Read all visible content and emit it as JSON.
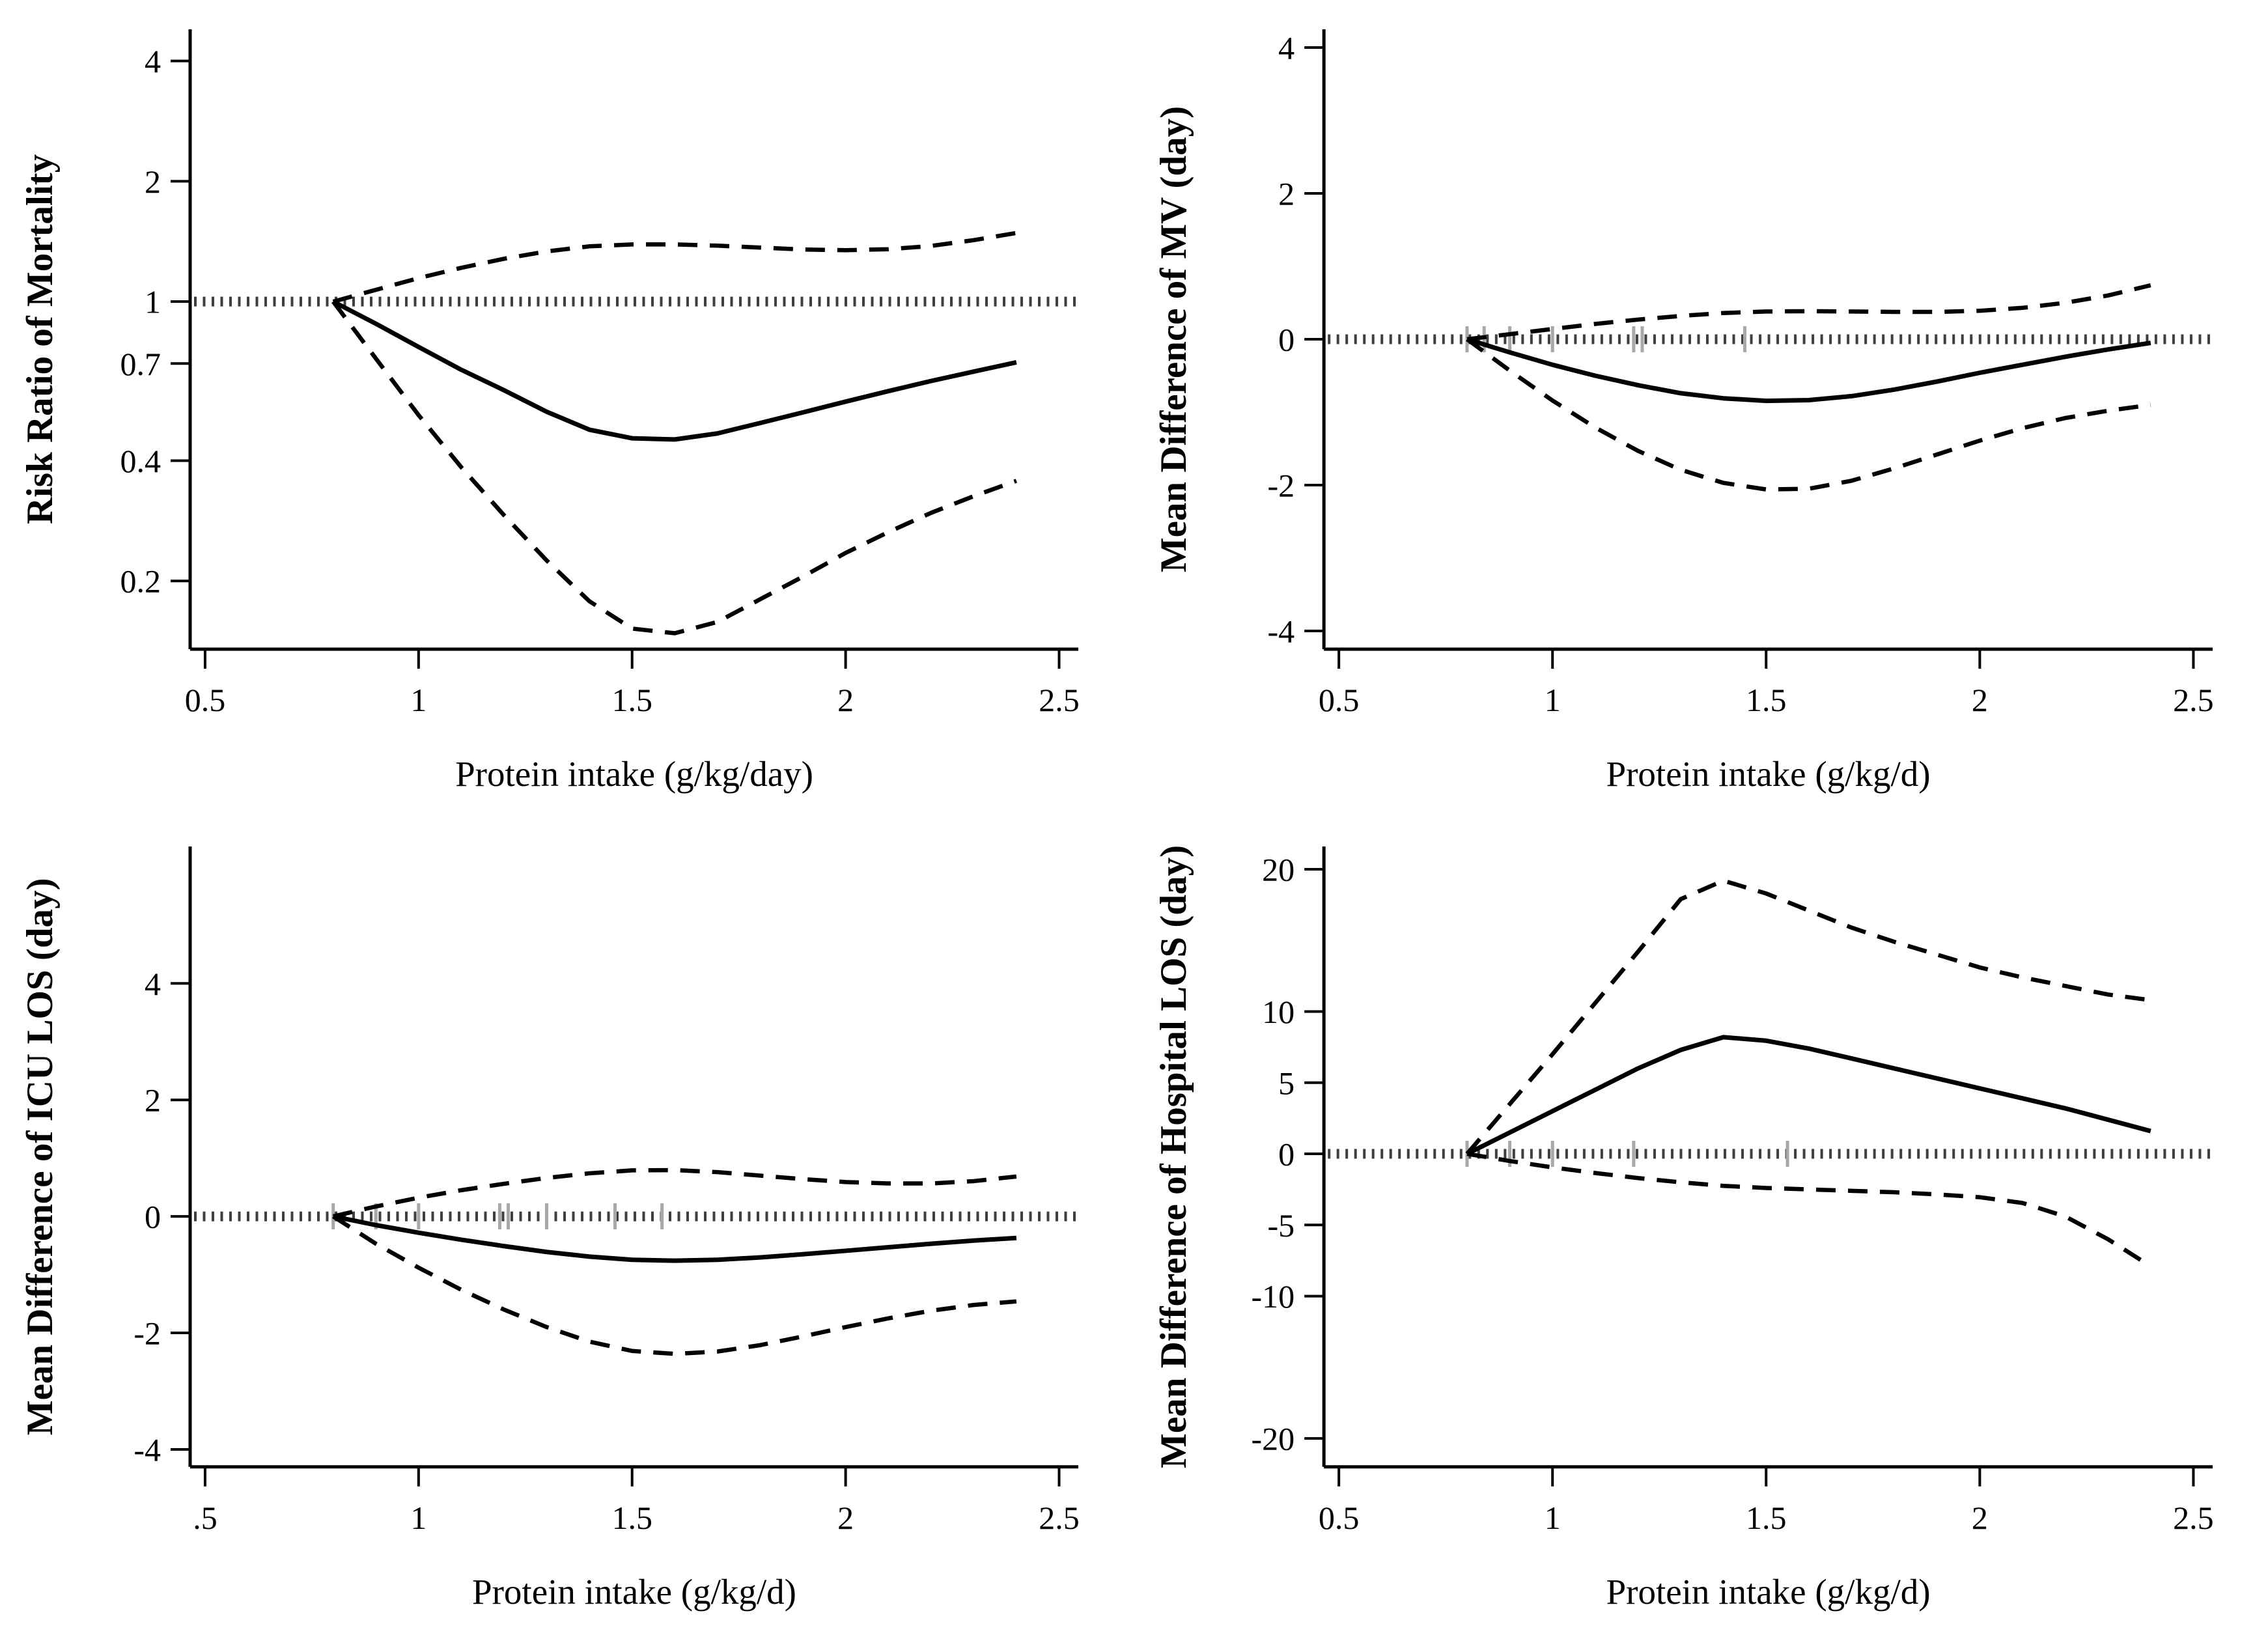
{
  "figure": {
    "background": "#ffffff",
    "colors": {
      "curve": "#000000",
      "axis": "#000000",
      "ref_line": "#3f3f3f",
      "rug": "#a8a8a8",
      "text": "#000000"
    }
  },
  "chart_data": [
    {
      "type": "line",
      "panel": "top-left",
      "ylabel": "Risk Ratio of Mortality",
      "xlabel": "Protein intake (g/kg/day)",
      "y_scale": "log",
      "y_domain": [
        0.135,
        4.8
      ],
      "x_domain": [
        0.465,
        2.545
      ],
      "x_ticks": {
        "values": [
          0.5,
          1,
          1.5,
          2,
          2.5
        ],
        "labels": [
          "0.5",
          "1",
          "1.5",
          "2",
          "2.5"
        ]
      },
      "y_ticks": {
        "values": [
          4,
          2,
          1,
          0.7,
          0.4,
          0.2
        ],
        "labels": [
          "4",
          "2",
          "1",
          "0.7",
          "0.4",
          "0.2"
        ]
      },
      "ref_value": 1,
      "rug_x": [],
      "x": [
        0.8,
        0.9,
        1.0,
        1.1,
        1.2,
        1.3,
        1.4,
        1.5,
        1.6,
        1.7,
        1.8,
        1.9,
        2.0,
        2.1,
        2.2,
        2.3,
        2.4
      ],
      "series": [
        {
          "name": "estimate",
          "style": "solid",
          "values": [
            1.0,
            0.88,
            0.77,
            0.675,
            0.6,
            0.53,
            0.478,
            0.455,
            0.452,
            0.468,
            0.497,
            0.528,
            0.562,
            0.597,
            0.633,
            0.668,
            0.705
          ]
        },
        {
          "name": "upper_95ci",
          "style": "dashed",
          "values": [
            1.0,
            1.07,
            1.145,
            1.215,
            1.28,
            1.335,
            1.375,
            1.39,
            1.39,
            1.38,
            1.365,
            1.35,
            1.345,
            1.352,
            1.378,
            1.425,
            1.485
          ]
        },
        {
          "name": "lower_95ci",
          "style": "dashed",
          "values": [
            1.0,
            0.72,
            0.52,
            0.385,
            0.292,
            0.225,
            0.178,
            0.152,
            0.148,
            0.158,
            0.18,
            0.205,
            0.235,
            0.265,
            0.296,
            0.326,
            0.356
          ]
        }
      ]
    },
    {
      "type": "line",
      "panel": "top-right",
      "ylabel": "Mean Difference of MV (day)",
      "xlabel": "Protein intake (g/kg/d)",
      "y_scale": "linear",
      "y_domain": [
        -4.25,
        4.25
      ],
      "x_domain": [
        0.465,
        2.545
      ],
      "x_ticks": {
        "values": [
          0.5,
          1,
          1.5,
          2,
          2.5
        ],
        "labels": [
          "0.5",
          "1",
          "1.5",
          "2",
          "2.5"
        ]
      },
      "y_ticks": {
        "values": [
          4,
          2,
          0,
          -2,
          -4
        ],
        "labels": [
          "4",
          "2",
          "0",
          "-2",
          "-4"
        ]
      },
      "ref_value": 0,
      "rug_x": [
        0.8,
        0.84,
        0.9,
        1.0,
        1.19,
        1.21,
        1.45
      ],
      "x": [
        0.8,
        0.9,
        1.0,
        1.1,
        1.2,
        1.3,
        1.4,
        1.5,
        1.6,
        1.7,
        1.8,
        1.9,
        2.0,
        2.1,
        2.2,
        2.3,
        2.4
      ],
      "series": [
        {
          "name": "estimate",
          "style": "solid",
          "values": [
            0,
            -0.18,
            -0.35,
            -0.5,
            -0.63,
            -0.74,
            -0.81,
            -0.845,
            -0.835,
            -0.78,
            -0.69,
            -0.58,
            -0.46,
            -0.35,
            -0.24,
            -0.14,
            -0.05
          ]
        },
        {
          "name": "upper_95ci",
          "style": "dashed",
          "values": [
            0,
            0.07,
            0.14,
            0.21,
            0.27,
            0.32,
            0.36,
            0.38,
            0.385,
            0.38,
            0.375,
            0.375,
            0.39,
            0.43,
            0.5,
            0.6,
            0.74
          ]
        },
        {
          "name": "lower_95ci",
          "style": "dashed",
          "values": [
            0,
            -0.43,
            -0.84,
            -1.21,
            -1.53,
            -1.79,
            -1.97,
            -2.06,
            -2.05,
            -1.94,
            -1.77,
            -1.58,
            -1.39,
            -1.22,
            -1.08,
            -0.98,
            -0.9
          ]
        }
      ]
    },
    {
      "type": "line",
      "panel": "bottom-left",
      "ylabel": "Mean Difference of ICU LOS (day)",
      "xlabel": "Protein intake (g/kg/d)",
      "y_scale": "linear",
      "y_domain": [
        -4.3,
        6.35
      ],
      "x_domain": [
        0.465,
        2.545
      ],
      "x_ticks": {
        "values": [
          0.5,
          1,
          1.5,
          2,
          2.5
        ],
        "labels": [
          ".5",
          "1",
          "1.5",
          "2",
          "2.5"
        ]
      },
      "y_ticks": {
        "values": [
          4,
          2,
          0,
          -2,
          -4
        ],
        "labels": [
          "4",
          "2",
          "0",
          "-2",
          "-4"
        ]
      },
      "ref_value": 0,
      "rug_x": [
        0.8,
        0.9,
        1.0,
        1.19,
        1.21,
        1.3,
        1.46,
        1.57
      ],
      "x": [
        0.8,
        0.9,
        1.0,
        1.1,
        1.2,
        1.3,
        1.4,
        1.5,
        1.6,
        1.7,
        1.8,
        1.9,
        2.0,
        2.1,
        2.2,
        2.3,
        2.4
      ],
      "series": [
        {
          "name": "estimate",
          "style": "solid",
          "values": [
            0,
            -0.15,
            -0.28,
            -0.4,
            -0.51,
            -0.61,
            -0.69,
            -0.745,
            -0.76,
            -0.745,
            -0.705,
            -0.65,
            -0.59,
            -0.53,
            -0.47,
            -0.415,
            -0.37
          ]
        },
        {
          "name": "upper_95ci",
          "style": "dashed",
          "values": [
            0,
            0.17,
            0.32,
            0.45,
            0.56,
            0.66,
            0.74,
            0.79,
            0.795,
            0.76,
            0.7,
            0.64,
            0.59,
            0.565,
            0.565,
            0.605,
            0.685
          ]
        },
        {
          "name": "lower_95ci",
          "style": "dashed",
          "values": [
            0,
            -0.47,
            -0.88,
            -1.26,
            -1.6,
            -1.9,
            -2.15,
            -2.31,
            -2.36,
            -2.32,
            -2.21,
            -2.06,
            -1.9,
            -1.75,
            -1.62,
            -1.52,
            -1.46
          ]
        }
      ]
    },
    {
      "type": "line",
      "panel": "bottom-right",
      "ylabel": "Mean Difference of Hospital LOS (day)",
      "xlabel": "Protein intake (g/kg/d)",
      "y_scale": "linear",
      "y_domain": [
        -22,
        21.6
      ],
      "x_domain": [
        0.465,
        2.545
      ],
      "x_ticks": {
        "values": [
          0.5,
          1,
          1.5,
          2,
          2.5
        ],
        "labels": [
          "0.5",
          "1",
          "1.5",
          "2",
          "2.5"
        ]
      },
      "y_ticks": {
        "values": [
          20,
          10,
          5,
          0,
          -5,
          -10,
          -20
        ],
        "labels": [
          "20",
          "10",
          "5",
          "0",
          "-5",
          "-10",
          "-20"
        ]
      },
      "ref_value": 0,
      "rug_x": [
        0.8,
        0.9,
        1.0,
        1.19,
        1.55
      ],
      "x": [
        0.8,
        0.9,
        1.0,
        1.1,
        1.2,
        1.3,
        1.4,
        1.5,
        1.6,
        1.7,
        1.8,
        1.9,
        2.0,
        2.1,
        2.2,
        2.3,
        2.4
      ],
      "series": [
        {
          "name": "estimate",
          "style": "solid",
          "values": [
            0,
            1.5,
            3.0,
            4.5,
            6.0,
            7.3,
            8.2,
            7.95,
            7.4,
            6.7,
            6.0,
            5.3,
            4.6,
            3.9,
            3.2,
            2.4,
            1.6
          ]
        },
        {
          "name": "upper_95ci",
          "style": "dashed",
          "values": [
            0,
            3.5,
            7.0,
            10.6,
            14.2,
            17.9,
            19.2,
            18.3,
            17.1,
            15.9,
            14.9,
            14.0,
            13.1,
            12.4,
            11.8,
            11.2,
            10.8
          ]
        },
        {
          "name": "lower_95ci",
          "style": "dashed",
          "values": [
            0,
            -0.5,
            -0.95,
            -1.35,
            -1.7,
            -2.0,
            -2.25,
            -2.4,
            -2.5,
            -2.6,
            -2.7,
            -2.85,
            -3.05,
            -3.45,
            -4.4,
            -6.0,
            -7.9
          ]
        }
      ]
    }
  ]
}
